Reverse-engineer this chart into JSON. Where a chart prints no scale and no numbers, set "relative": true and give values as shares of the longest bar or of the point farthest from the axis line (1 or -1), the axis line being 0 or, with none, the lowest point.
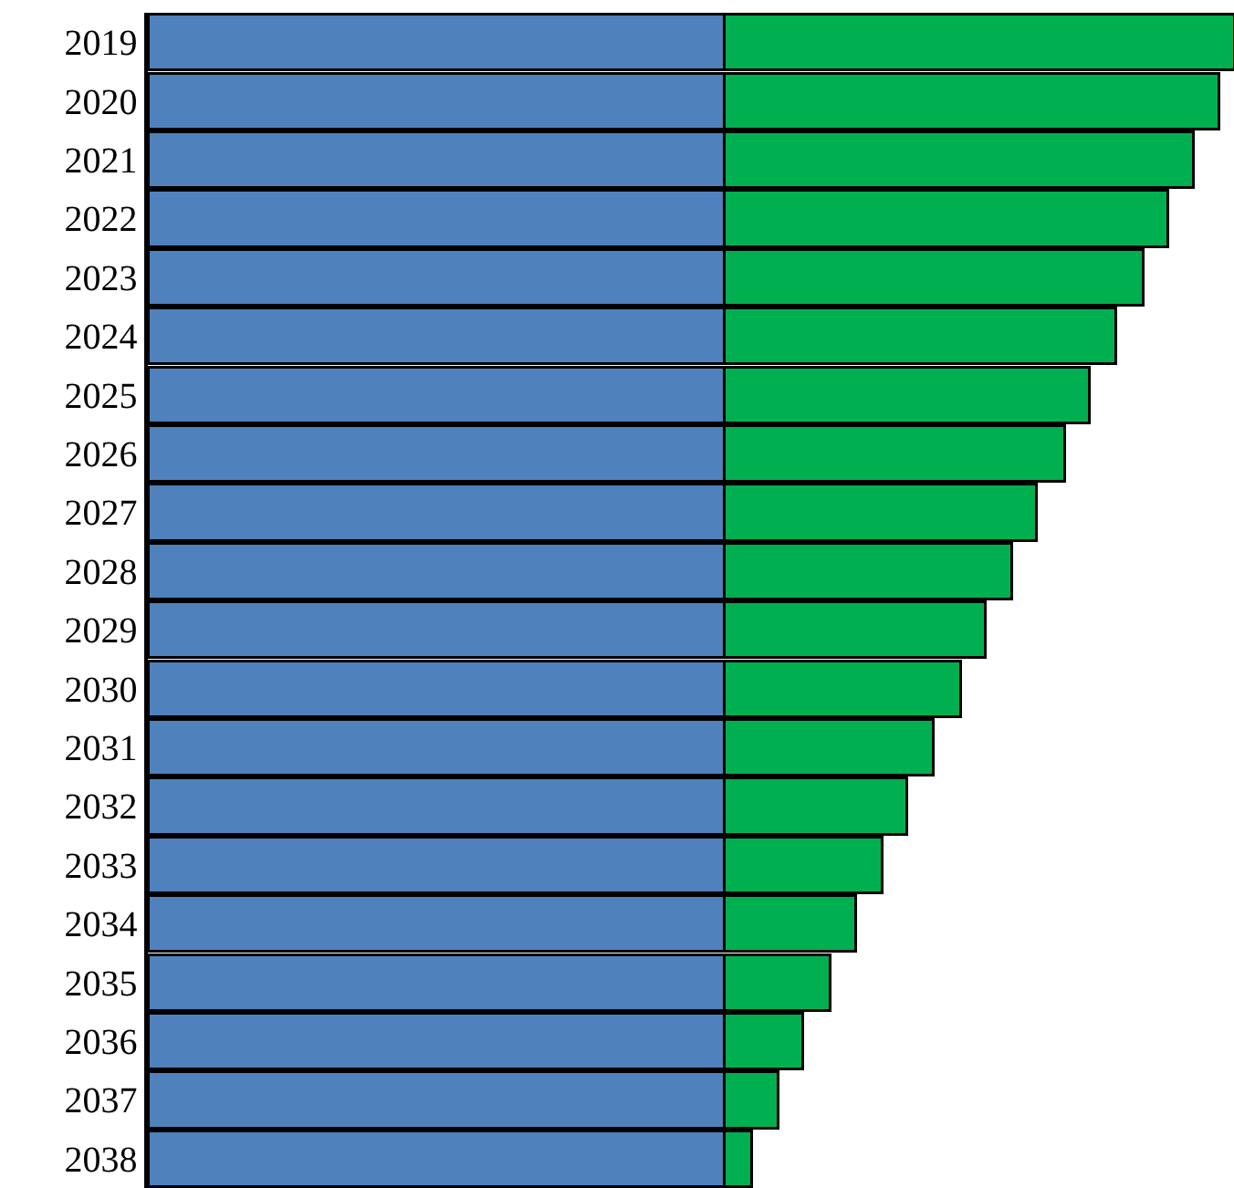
{
  "chart_data": {
    "type": "bar",
    "orientation": "horizontal",
    "stacked": true,
    "relative": true,
    "categories": [
      "2019",
      "2020",
      "2021",
      "2022",
      "2023",
      "2024",
      "2025",
      "2026",
      "2027",
      "2028",
      "2029",
      "2030",
      "2031",
      "2032",
      "2033",
      "2034",
      "2035",
      "2036",
      "2037",
      "2038"
    ],
    "series": [
      {
        "color": "#4f81bd",
        "values": [
          0.531,
          0.531,
          0.531,
          0.531,
          0.531,
          0.531,
          0.531,
          0.531,
          0.531,
          0.531,
          0.531,
          0.531,
          0.531,
          0.531,
          0.531,
          0.531,
          0.531,
          0.531,
          0.531,
          0.531
        ]
      },
      {
        "color": "#00b050",
        "values": [
          0.469,
          0.455,
          0.432,
          0.408,
          0.385,
          0.36,
          0.336,
          0.313,
          0.287,
          0.264,
          0.24,
          0.217,
          0.192,
          0.168,
          0.145,
          0.121,
          0.097,
          0.072,
          0.049,
          0.025
        ]
      }
    ]
  }
}
